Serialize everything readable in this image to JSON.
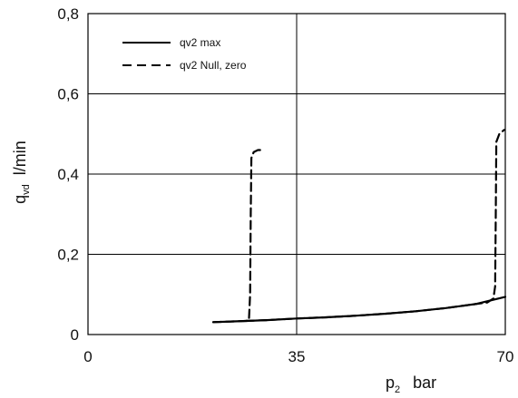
{
  "chart_data": {
    "type": "line",
    "xlabel": {
      "main": "p",
      "sub": "2",
      "unit": "bar"
    },
    "ylabel": {
      "main": "q",
      "sub": "vd",
      "unit": "l/min"
    },
    "xlim": [
      0,
      70
    ],
    "ylim": [
      0,
      0.8
    ],
    "x_ticks": [
      0,
      35,
      70
    ],
    "x_tick_labels": [
      "0",
      "35",
      "70"
    ],
    "y_ticks": [
      0,
      0.2,
      0.4,
      0.6,
      0.8
    ],
    "y_tick_labels": [
      "0",
      "0,2",
      "0,4",
      "0,6",
      "0,8"
    ],
    "grid": true,
    "legend_position": "top-left",
    "series": [
      {
        "name": "qv2 max",
        "style": "solid",
        "color": "#000000",
        "points": [
          [
            21,
            0.031
          ],
          [
            25,
            0.033
          ],
          [
            30,
            0.036
          ],
          [
            35,
            0.04
          ],
          [
            40,
            0.043
          ],
          [
            45,
            0.047
          ],
          [
            50,
            0.052
          ],
          [
            55,
            0.058
          ],
          [
            60,
            0.066
          ],
          [
            65,
            0.076
          ],
          [
            70,
            0.094
          ]
        ]
      },
      {
        "name": "qv2 Null, zero",
        "style": "dashed",
        "color": "#000000",
        "segments": [
          [
            [
              21,
              0.031
            ],
            [
              25,
              0.033
            ],
            [
              26.5,
              0.034
            ],
            [
              27.0,
              0.036
            ],
            [
              27.2,
              0.1
            ],
            [
              27.3,
              0.3
            ],
            [
              27.4,
              0.44
            ],
            [
              27.8,
              0.455
            ],
            [
              28.5,
              0.46
            ],
            [
              29.3,
              0.46
            ]
          ],
          [
            [
              26.5,
              0.034
            ],
            [
              30,
              0.036
            ],
            [
              35,
              0.04
            ],
            [
              40,
              0.043
            ],
            [
              45,
              0.047
            ],
            [
              50,
              0.052
            ],
            [
              55,
              0.058
            ],
            [
              60,
              0.066
            ],
            [
              65,
              0.076
            ],
            [
              67.0,
              0.08
            ],
            [
              68.0,
              0.09
            ],
            [
              68.3,
              0.12
            ],
            [
              68.4,
              0.3
            ],
            [
              68.5,
              0.48
            ],
            [
              69.0,
              0.5
            ],
            [
              69.8,
              0.51
            ]
          ]
        ]
      }
    ]
  }
}
